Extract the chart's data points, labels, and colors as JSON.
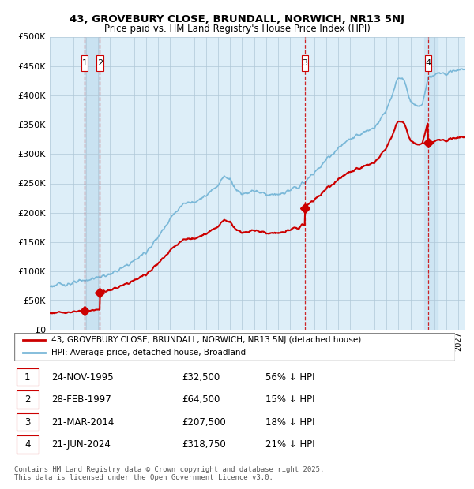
{
  "title1": "43, GROVEBURY CLOSE, BRUNDALL, NORWICH, NR13 5NJ",
  "title2": "Price paid vs. HM Land Registry's House Price Index (HPI)",
  "ylim": [
    0,
    500000
  ],
  "yticks": [
    0,
    50000,
    100000,
    150000,
    200000,
    250000,
    300000,
    350000,
    400000,
    450000,
    500000
  ],
  "xlim_start": 1993.0,
  "xlim_end": 2027.5,
  "price_paid": [
    {
      "date": 1995.9,
      "price": 32500,
      "label": "1"
    },
    {
      "date": 1997.17,
      "price": 64500,
      "label": "2"
    },
    {
      "date": 2014.22,
      "price": 207500,
      "label": "3"
    },
    {
      "date": 2024.47,
      "price": 318750,
      "label": "4"
    }
  ],
  "transaction_lines": [
    1995.9,
    1997.17,
    2014.22,
    2024.47
  ],
  "legend_property_label": "43, GROVEBURY CLOSE, BRUNDALL, NORWICH, NR13 5NJ (detached house)",
  "legend_hpi_label": "HPI: Average price, detached house, Broadland",
  "table_data": [
    {
      "num": "1",
      "date": "24-NOV-1995",
      "price": "£32,500",
      "pct": "56% ↓ HPI"
    },
    {
      "num": "2",
      "date": "28-FEB-1997",
      "price": "£64,500",
      "pct": "15% ↓ HPI"
    },
    {
      "num": "3",
      "date": "21-MAR-2014",
      "price": "£207,500",
      "pct": "18% ↓ HPI"
    },
    {
      "num": "4",
      "date": "21-JUN-2024",
      "price": "£318,750",
      "pct": "21% ↓ HPI"
    }
  ],
  "footer": "Contains HM Land Registry data © Crown copyright and database right 2025.\nThis data is licensed under the Open Government Licence v3.0.",
  "hpi_color": "#7ab8d8",
  "price_color": "#cc0000",
  "dashed_line_color": "#cc0000",
  "grid_color": "#b0c8d8",
  "chart_bg": "#ddeef8"
}
